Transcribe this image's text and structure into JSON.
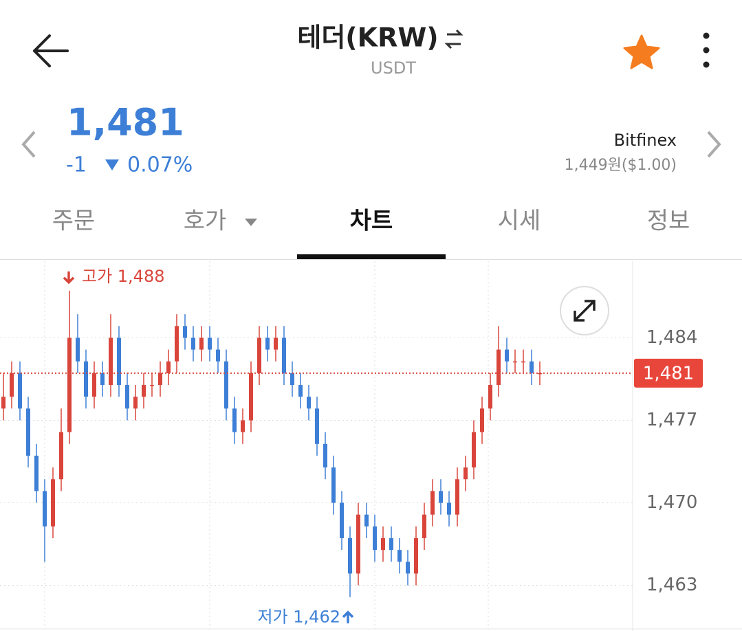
{
  "header": {
    "title": "테더(KRW)",
    "subtitle": "USDT"
  },
  "price": {
    "current": "1,481",
    "change": "-1",
    "change_rate": "0.07%"
  },
  "reference": {
    "exchange": "Bitfinex",
    "price": "1,449원($1.00)"
  },
  "tabs": [
    "주문",
    "호가",
    "차트",
    "시세",
    "정보"
  ],
  "chart_data": {
    "type": "candlestick",
    "open": [
      1478,
      1479,
      1481,
      1478,
      1474,
      1471,
      1468,
      1472,
      1476,
      1484,
      1482,
      1479,
      1481,
      1480,
      1484,
      1480,
      1478,
      1479,
      1480,
      1480,
      1481,
      1482,
      1485,
      1484,
      1483,
      1484,
      1483,
      1482,
      1478,
      1476,
      1477,
      1481,
      1484,
      1483,
      1484,
      1481,
      1480,
      1479,
      1478,
      1475,
      1473,
      1470,
      1467,
      1464,
      1469,
      1468,
      1466,
      1467,
      1466,
      1465,
      1464,
      1467,
      1469,
      1471,
      1470,
      1469,
      1472,
      1473,
      1476,
      1478,
      1480,
      1483,
      1482,
      1482,
      1482,
      1481
    ],
    "high": [
      1481,
      1482,
      1482,
      1479,
      1475,
      1472,
      1473,
      1478,
      1488,
      1486,
      1483,
      1482,
      1482,
      1486,
      1485,
      1481,
      1480,
      1481,
      1481,
      1482,
      1483,
      1486,
      1486,
      1485,
      1485,
      1485,
      1484,
      1483,
      1479,
      1478,
      1482,
      1485,
      1485,
      1485,
      1485,
      1482,
      1481,
      1480,
      1479,
      1476,
      1474,
      1471,
      1468,
      1470,
      1470,
      1469,
      1468,
      1468,
      1467,
      1466,
      1468,
      1470,
      1472,
      1472,
      1471,
      1473,
      1474,
      1477,
      1479,
      1481,
      1485,
      1484,
      1483,
      1483,
      1483,
      1482
    ],
    "low": [
      1477,
      1478,
      1477,
      1473,
      1470,
      1465,
      1467,
      1471,
      1475,
      1481,
      1478,
      1478,
      1479,
      1479,
      1479,
      1477,
      1477,
      1478,
      1479,
      1479,
      1480,
      1481,
      1483,
      1482,
      1482,
      1482,
      1481,
      1477,
      1475,
      1475,
      1476,
      1480,
      1482,
      1482,
      1480,
      1479,
      1478,
      1477,
      1474,
      1472,
      1469,
      1466,
      1462,
      1463,
      1467,
      1465,
      1465,
      1465,
      1464,
      1463,
      1463,
      1466,
      1468,
      1469,
      1468,
      1468,
      1471,
      1472,
      1475,
      1477,
      1479,
      1481,
      1481,
      1481,
      1480,
      1480
    ],
    "close": [
      1479,
      1481,
      1478,
      1474,
      1471,
      1468,
      1472,
      1476,
      1484,
      1482,
      1479,
      1481,
      1480,
      1484,
      1480,
      1478,
      1479,
      1480,
      1480,
      1481,
      1482,
      1485,
      1484,
      1483,
      1484,
      1483,
      1482,
      1478,
      1476,
      1477,
      1481,
      1484,
      1483,
      1484,
      1481,
      1480,
      1479,
      1478,
      1475,
      1473,
      1470,
      1467,
      1464,
      1469,
      1468,
      1466,
      1467,
      1466,
      1465,
      1464,
      1467,
      1469,
      1471,
      1470,
      1469,
      1472,
      1473,
      1476,
      1478,
      1480,
      1483,
      1482,
      1482,
      1482,
      1481,
      1481
    ],
    "up_color": "#d9453b",
    "down_color": "#3d7fd6",
    "ylim": [
      1459.3,
      1490.5
    ],
    "yticks": [
      {
        "value": 1463,
        "label": "1,463"
      },
      {
        "value": 1470,
        "label": "1,470"
      },
      {
        "value": 1477,
        "label": "1,477"
      },
      {
        "value": 1484,
        "label": "1,484"
      }
    ],
    "grid": true,
    "current_price": {
      "value": 1481,
      "label": "1,481"
    },
    "high_label": "고가 1,488",
    "low_label": "저가 1,462"
  }
}
